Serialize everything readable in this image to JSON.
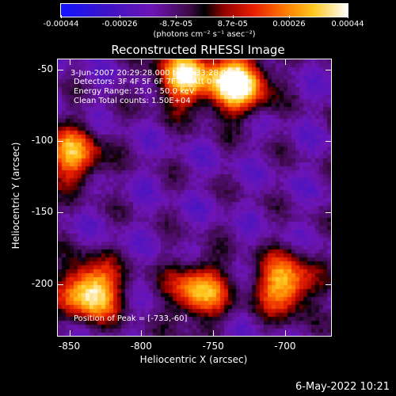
{
  "chart_data": {
    "type": "heatmap",
    "title": "Reconstructed RHESSI Image",
    "xlabel": "Heliocentric X (arcsec)",
    "ylabel": "Heliocentric Y (arcsec)",
    "xlim": [
      -858,
      -668
    ],
    "ylim": [
      -236,
      -43
    ],
    "x_ticks": [
      "-850",
      "-800",
      "-750",
      "-700"
    ],
    "y_ticks": [
      "-50",
      "-100",
      "-150",
      "-200"
    ],
    "colorbar": {
      "ticks": [
        "-0.00044",
        "-0.00026",
        "-8.7e-05",
        "8.7e-05",
        "0.00026",
        "0.00044"
      ],
      "units_label": "(photons cm⁻² s⁻¹ asec⁻²)",
      "range": [
        -0.00044,
        0.00044
      ]
    },
    "annotations": {
      "time": "3-Jun-2007 20:29:28.000 to 20:33:28.000",
      "detectors": "Detectors: 3F 4F 5F 6F 7F 8F, Att 0",
      "energy": "Energy Range: 25.0 - 50.0 keV",
      "clean": "Clean     Total counts: 1.50E+04",
      "peak": "Position of Peak = [-733,-60]"
    },
    "bright_sources": [
      {
        "x": -733,
        "y": -60,
        "value": 0.00044
      },
      {
        "x": -835,
        "y": -205,
        "value": 0.0004
      },
      {
        "x": -770,
        "y": -55,
        "value": 0.00032
      },
      {
        "x": -700,
        "y": -200,
        "value": 0.0003
      },
      {
        "x": -760,
        "y": -205,
        "value": 0.00026
      },
      {
        "x": -848,
        "y": -110,
        "value": 0.00024
      }
    ]
  },
  "footer": {
    "date": "6-May-2022 10:21"
  }
}
